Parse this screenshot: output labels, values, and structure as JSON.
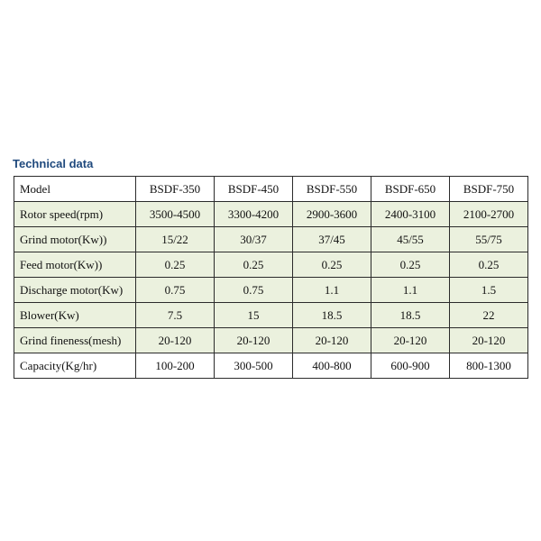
{
  "title": "Technical data",
  "table": {
    "header": [
      "Model",
      "BSDF-350",
      "BSDF-450",
      "BSDF-550",
      "BSDF-650",
      "BSDF-750"
    ],
    "rows": [
      {
        "label": "Rotor speed(rpm)",
        "values": [
          "3500-4500",
          "3300-4200",
          "2900-3600",
          "2400-3100",
          "2100-2700"
        ]
      },
      {
        "label": "Grind motor(Kw))",
        "values": [
          "15/22",
          "30/37",
          "37/45",
          "45/55",
          "55/75"
        ]
      },
      {
        "label": "Feed motor(Kw))",
        "values": [
          "0.25",
          "0.25",
          "0.25",
          "0.25",
          "0.25"
        ]
      },
      {
        "label": "Discharge motor(Kw)",
        "values": [
          "0.75",
          "0.75",
          "1.1",
          "1.1",
          "1.5"
        ]
      },
      {
        "label": "Blower(Kw)",
        "values": [
          "7.5",
          "15",
          "18.5",
          "18.5",
          "22"
        ]
      },
      {
        "label": "Grind fineness(mesh)",
        "values": [
          "20-120",
          "20-120",
          "20-120",
          "20-120",
          "20-120"
        ]
      },
      {
        "label": "Capacity(Kg/hr)",
        "values": [
          "100-200",
          "300-500",
          "400-800",
          "600-900",
          "800-1300"
        ]
      }
    ]
  },
  "colors": {
    "title": "#1f497d",
    "row_fill": "#ebf1de",
    "border": "#2b2b2b"
  }
}
